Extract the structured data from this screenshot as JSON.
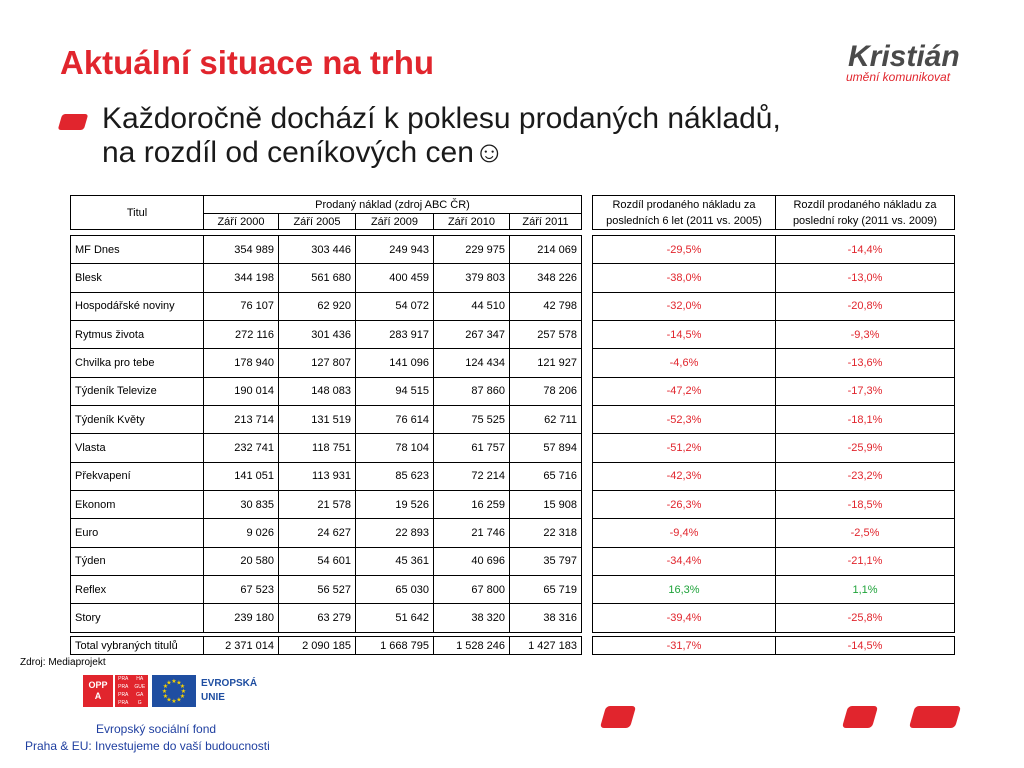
{
  "slide": {
    "title": "Aktuální situace na trhu",
    "bullet_line1": "Každoročně dochází k poklesu prodaných nákladů,",
    "bullet_line2": "na rozdíl od ceníkových cen☺"
  },
  "logo": {
    "name": "Kristián",
    "tagline": "umění komunikovat"
  },
  "table": {
    "header": {
      "title_col": "Titul",
      "group": "Prodaný náklad (zdroj ABC ČR)",
      "years": [
        "Září 2000",
        "Září 2005",
        "Září 2009",
        "Září 2010",
        "Září 2011"
      ],
      "diff6_line1": "Rozdíl prodaného nákladu za",
      "diff6_line2": "posledních 6 let (2011 vs. 2005)",
      "diff2_line1": "Rozdíl prodaného nákladu za",
      "diff2_line2": "poslední roky (2011 vs. 2009)"
    },
    "rows": [
      {
        "title": "MF Dnes",
        "v2000": "354 989",
        "v2005": "303 446",
        "v2009": "249 943",
        "v2010": "229 975",
        "v2011": "214 069",
        "d6": "-29,5%",
        "d2": "-14,4%"
      },
      {
        "title": "Blesk",
        "v2000": "344 198",
        "v2005": "561 680",
        "v2009": "400 459",
        "v2010": "379 803",
        "v2011": "348 226",
        "d6": "-38,0%",
        "d2": "-13,0%"
      },
      {
        "title": "Hospodářské noviny",
        "v2000": "76 107",
        "v2005": "62 920",
        "v2009": "54 072",
        "v2010": "44 510",
        "v2011": "42 798",
        "d6": "-32,0%",
        "d2": "-20,8%"
      },
      {
        "title": "Rytmus života",
        "v2000": "272 116",
        "v2005": "301 436",
        "v2009": "283 917",
        "v2010": "267 347",
        "v2011": "257 578",
        "d6": "-14,5%",
        "d2": "-9,3%"
      },
      {
        "title": "Chvilka pro tebe",
        "v2000": "178 940",
        "v2005": "127 807",
        "v2009": "141 096",
        "v2010": "124 434",
        "v2011": "121 927",
        "d6": "-4,6%",
        "d2": "-13,6%"
      },
      {
        "title": "Týdeník Televize",
        "v2000": "190 014",
        "v2005": "148 083",
        "v2009": "94 515",
        "v2010": "87 860",
        "v2011": "78 206",
        "d6": "-47,2%",
        "d2": "-17,3%"
      },
      {
        "title": "Týdeník Květy",
        "v2000": "213 714",
        "v2005": "131 519",
        "v2009": "76 614",
        "v2010": "75 525",
        "v2011": "62 711",
        "d6": "-52,3%",
        "d2": "-18,1%"
      },
      {
        "title": "Vlasta",
        "v2000": "232 741",
        "v2005": "118 751",
        "v2009": "78 104",
        "v2010": "61 757",
        "v2011": "57 894",
        "d6": "-51,2%",
        "d2": "-25,9%"
      },
      {
        "title": "Překvapení",
        "v2000": "141 051",
        "v2005": "113 931",
        "v2009": "85 623",
        "v2010": "72 214",
        "v2011": "65 716",
        "d6": "-42,3%",
        "d2": "-23,2%"
      },
      {
        "title": "Ekonom",
        "v2000": "30 835",
        "v2005": "21 578",
        "v2009": "19 526",
        "v2010": "16 259",
        "v2011": "15 908",
        "d6": "-26,3%",
        "d2": "-18,5%"
      },
      {
        "title": "Euro",
        "v2000": "9 026",
        "v2005": "24 627",
        "v2009": "22 893",
        "v2010": "21 746",
        "v2011": "22 318",
        "d6": "-9,4%",
        "d2": "-2,5%"
      },
      {
        "title": "Týden",
        "v2000": "20 580",
        "v2005": "54 601",
        "v2009": "45 361",
        "v2010": "40 696",
        "v2011": "35 797",
        "d6": "-34,4%",
        "d2": "-21,1%"
      },
      {
        "title": "Reflex",
        "v2000": "67 523",
        "v2005": "56 527",
        "v2009": "65 030",
        "v2010": "67 800",
        "v2011": "65 719",
        "d6": "16,3%",
        "d2": "1,1%"
      },
      {
        "title": "Story",
        "v2000": "239 180",
        "v2005": "63 279",
        "v2009": "51 642",
        "v2010": "38 320",
        "v2011": "38 316",
        "d6": "-39,4%",
        "d2": "-25,8%"
      }
    ],
    "total": {
      "title": "Total vybraných titulů",
      "v2000": "2 371 014",
      "v2005": "2 090 185",
      "v2009": "1 668 795",
      "v2010": "1 528 246",
      "v2011": "1 427 183",
      "d6": "-31,7%",
      "d2": "-14,5%"
    }
  },
  "footer": {
    "source_label": "Zdroj:",
    "source_value": "Mediaprojekt",
    "oppa_top": "OPP",
    "oppa_bottom": "A",
    "praha_cells": [
      "PRA",
      "HA",
      "PRA",
      "GUE",
      "PRA",
      "GA",
      "PRA",
      "G"
    ],
    "eu_line1": "EVROPSKÁ",
    "eu_line2": "UNIE",
    "line1": "Evropský sociální fond",
    "line2": "Praha & EU: Investujeme do vaší budoucnosti"
  },
  "colors": {
    "accent_red": "#e1252d",
    "positive_green": "#1fa33a",
    "eu_blue": "#1f4ea1"
  }
}
